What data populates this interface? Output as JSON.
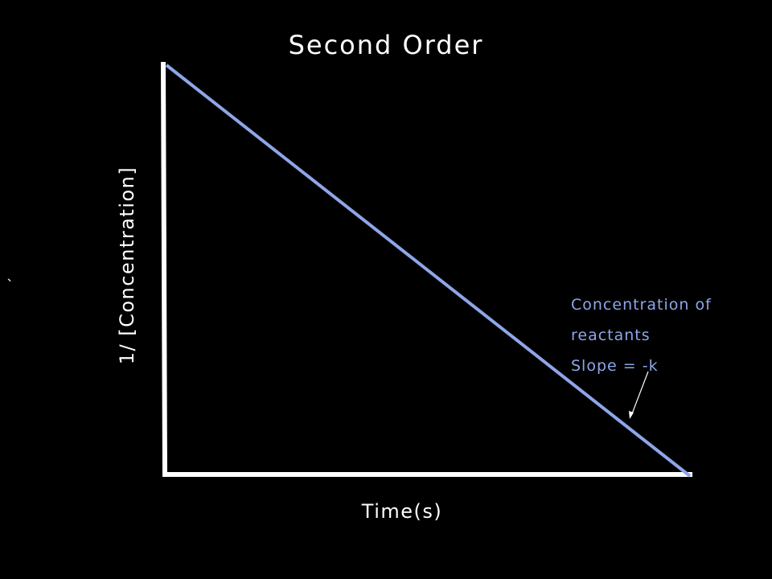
{
  "diagram": {
    "title": "Second Order",
    "xlabel": "Time(s)",
    "ylabel": "1/ [Concentration]",
    "stray_mark": "`",
    "annotation": {
      "line1": "Concentration of",
      "line2": "reactants",
      "line3": "Slope = -k"
    },
    "colors": {
      "background": "#000000",
      "axes": "#ffffff",
      "line": "#8ea6e8",
      "annotation_text": "#8ea6e8"
    }
  }
}
